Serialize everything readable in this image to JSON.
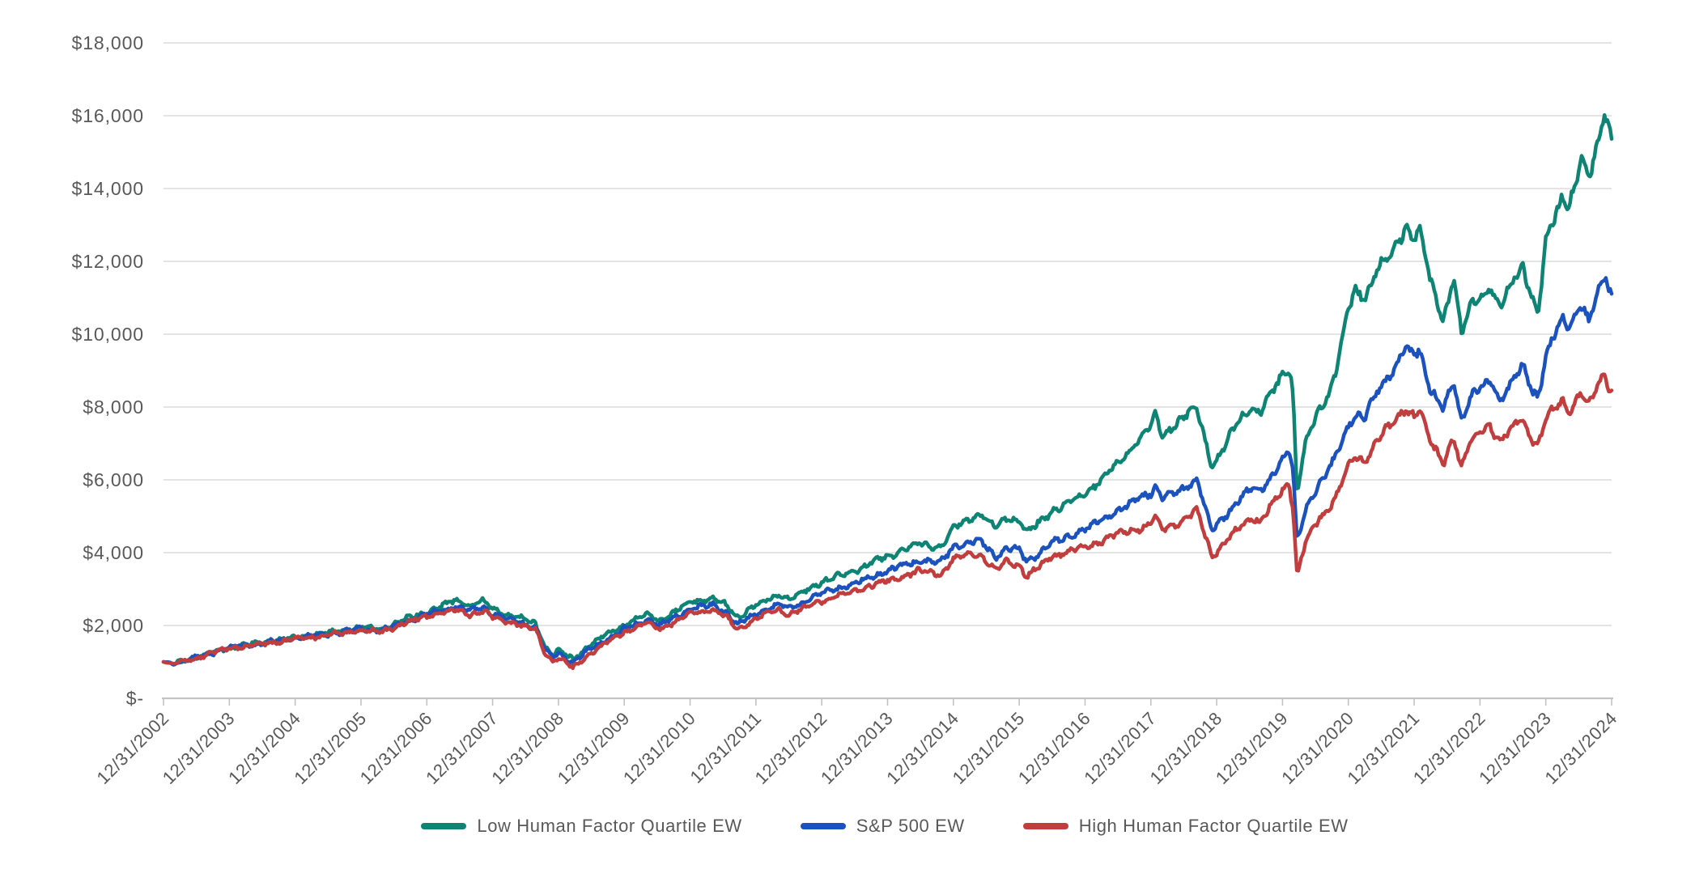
{
  "page": {
    "background": "#FFFFFF"
  },
  "chart_data": {
    "type": "line",
    "title": "",
    "xlabel": "",
    "ylabel": "",
    "x_unit": "years since 12/31/2002 (growth of $1,000)",
    "grid": "horizontal",
    "legend_position": "bottom",
    "axis_text_color": "#595959",
    "gridline_color": "#DBDBDB",
    "axis_line_color": "#C3C3C3",
    "y_axis": {
      "min": 0,
      "max": 18000,
      "tick_step": 2000,
      "ticks": [
        {
          "label": "$-",
          "value": 0
        },
        {
          "label": "$2,000",
          "value": 2000
        },
        {
          "label": "$4,000",
          "value": 4000
        },
        {
          "label": "$6,000",
          "value": 6000
        },
        {
          "label": "$8,000",
          "value": 8000
        },
        {
          "label": "$10,000",
          "value": 10000
        },
        {
          "label": "$12,000",
          "value": 12000
        },
        {
          "label": "$14,000",
          "value": 14000
        },
        {
          "label": "$16,000",
          "value": 16000
        },
        {
          "label": "$18,000",
          "value": 18000
        }
      ]
    },
    "x_axis": {
      "labels": [
        "12/31/2002",
        "12/31/2003",
        "12/31/2004",
        "12/31/2005",
        "12/31/2006",
        "12/31/2007",
        "12/31/2008",
        "12/31/2009",
        "12/31/2010",
        "12/31/2011",
        "12/31/2012",
        "12/31/2013",
        "12/31/2014",
        "12/31/2015",
        "12/31/2016",
        "12/31/2017",
        "12/31/2018",
        "12/31/2019",
        "12/31/2020",
        "12/31/2021",
        "12/31/2022",
        "12/31/2023",
        "12/31/2024"
      ]
    },
    "series": [
      {
        "name": "Low Human Factor Quartile EW",
        "color": "#0E8574",
        "points": [
          [
            0,
            1000
          ],
          [
            0.15,
            950
          ],
          [
            0.45,
            1100
          ],
          [
            1,
            1400
          ],
          [
            1.5,
            1530
          ],
          [
            2,
            1680
          ],
          [
            2.5,
            1800
          ],
          [
            3,
            1960
          ],
          [
            3.3,
            1905
          ],
          [
            3.7,
            2180
          ],
          [
            4,
            2360
          ],
          [
            4.45,
            2700
          ],
          [
            4.65,
            2550
          ],
          [
            4.85,
            2670
          ],
          [
            5,
            2450
          ],
          [
            5.35,
            2250
          ],
          [
            5.65,
            2050
          ],
          [
            5.8,
            1400
          ],
          [
            5.92,
            1180
          ],
          [
            6,
            1330
          ],
          [
            6.1,
            1200
          ],
          [
            6.22,
            1080
          ],
          [
            6.5,
            1500
          ],
          [
            7,
            2020
          ],
          [
            7.35,
            2300
          ],
          [
            7.55,
            2130
          ],
          [
            8,
            2640
          ],
          [
            8.35,
            2760
          ],
          [
            8.55,
            2550
          ],
          [
            8.72,
            2230
          ],
          [
            9,
            2560
          ],
          [
            9.35,
            2860
          ],
          [
            9.5,
            2720
          ],
          [
            10,
            3200
          ],
          [
            10.5,
            3520
          ],
          [
            11,
            3900
          ],
          [
            11.5,
            4250
          ],
          [
            11.8,
            4150
          ],
          [
            12,
            4660
          ],
          [
            12.4,
            5100
          ],
          [
            12.65,
            4670
          ],
          [
            12.8,
            4950
          ],
          [
            13,
            4890
          ],
          [
            13.12,
            4520
          ],
          [
            13.5,
            5150
          ],
          [
            14,
            5600
          ],
          [
            14.5,
            6450
          ],
          [
            15,
            7500
          ],
          [
            15.07,
            7780
          ],
          [
            15.18,
            7250
          ],
          [
            15.45,
            7650
          ],
          [
            15.7,
            8000
          ],
          [
            15.93,
            6360
          ],
          [
            16,
            6520
          ],
          [
            16.35,
            7700
          ],
          [
            16.55,
            8000
          ],
          [
            16.65,
            7800
          ],
          [
            17,
            8900
          ],
          [
            17.1,
            9130
          ],
          [
            17.16,
            8400
          ],
          [
            17.22,
            5600
          ],
          [
            17.35,
            7000
          ],
          [
            17.55,
            7900
          ],
          [
            17.65,
            8200
          ],
          [
            17.8,
            8900
          ],
          [
            18,
            10700
          ],
          [
            18.1,
            11200
          ],
          [
            18.25,
            11000
          ],
          [
            18.45,
            11800
          ],
          [
            18.65,
            12200
          ],
          [
            18.87,
            12950
          ],
          [
            19,
            12650
          ],
          [
            19.08,
            12900
          ],
          [
            19.25,
            11400
          ],
          [
            19.45,
            10400
          ],
          [
            19.6,
            11600
          ],
          [
            19.72,
            9950
          ],
          [
            19.85,
            10800
          ],
          [
            20,
            11000
          ],
          [
            20.15,
            11300
          ],
          [
            20.3,
            10700
          ],
          [
            20.55,
            11700
          ],
          [
            20.65,
            11900
          ],
          [
            20.8,
            10900
          ],
          [
            20.88,
            10500
          ],
          [
            21,
            12500
          ],
          [
            21.1,
            13100
          ],
          [
            21.25,
            13800
          ],
          [
            21.35,
            13450
          ],
          [
            21.55,
            14800
          ],
          [
            21.65,
            14300
          ],
          [
            21.78,
            15200
          ],
          [
            21.9,
            16150
          ],
          [
            21.95,
            15700
          ],
          [
            22,
            15200
          ]
        ]
      },
      {
        "name": "S&P 500 EW",
        "color": "#1B52BE",
        "points": [
          [
            0,
            1000
          ],
          [
            0.15,
            952
          ],
          [
            0.45,
            1090
          ],
          [
            1,
            1390
          ],
          [
            1.5,
            1510
          ],
          [
            2,
            1650
          ],
          [
            2.5,
            1765
          ],
          [
            3,
            1900
          ],
          [
            3.3,
            1855
          ],
          [
            3.7,
            2120
          ],
          [
            4,
            2300
          ],
          [
            4.45,
            2520
          ],
          [
            4.65,
            2400
          ],
          [
            4.85,
            2500
          ],
          [
            5,
            2330
          ],
          [
            5.35,
            2130
          ],
          [
            5.65,
            1950
          ],
          [
            5.8,
            1330
          ],
          [
            5.92,
            1120
          ],
          [
            6,
            1260
          ],
          [
            6.1,
            1120
          ],
          [
            6.22,
            990
          ],
          [
            6.5,
            1390
          ],
          [
            7,
            1900
          ],
          [
            7.35,
            2160
          ],
          [
            7.55,
            2000
          ],
          [
            8,
            2460
          ],
          [
            8.35,
            2570
          ],
          [
            8.55,
            2350
          ],
          [
            8.72,
            2030
          ],
          [
            9,
            2320
          ],
          [
            9.35,
            2580
          ],
          [
            9.5,
            2450
          ],
          [
            10,
            2890
          ],
          [
            10.5,
            3160
          ],
          [
            11,
            3500
          ],
          [
            11.5,
            3800
          ],
          [
            11.8,
            3700
          ],
          [
            12,
            4180
          ],
          [
            12.4,
            4330
          ],
          [
            12.65,
            3890
          ],
          [
            12.8,
            4120
          ],
          [
            13,
            4080
          ],
          [
            13.12,
            3750
          ],
          [
            13.5,
            4250
          ],
          [
            14,
            4650
          ],
          [
            14.5,
            5150
          ],
          [
            15,
            5650
          ],
          [
            15.07,
            5850
          ],
          [
            15.18,
            5480
          ],
          [
            15.45,
            5700
          ],
          [
            15.7,
            6030
          ],
          [
            15.93,
            4600
          ],
          [
            16,
            4720
          ],
          [
            16.35,
            5500
          ],
          [
            16.55,
            5800
          ],
          [
            16.65,
            5650
          ],
          [
            17,
            6550
          ],
          [
            17.1,
            6780
          ],
          [
            17.16,
            6200
          ],
          [
            17.22,
            4300
          ],
          [
            17.35,
            5200
          ],
          [
            17.55,
            5900
          ],
          [
            17.65,
            6100
          ],
          [
            17.8,
            6600
          ],
          [
            18,
            7500
          ],
          [
            18.1,
            7800
          ],
          [
            18.25,
            7700
          ],
          [
            18.45,
            8500
          ],
          [
            18.65,
            8950
          ],
          [
            18.87,
            9570
          ],
          [
            19,
            9400
          ],
          [
            19.08,
            9580
          ],
          [
            19.25,
            8500
          ],
          [
            19.45,
            7900
          ],
          [
            19.6,
            8700
          ],
          [
            19.72,
            7600
          ],
          [
            19.85,
            8300
          ],
          [
            20,
            8500
          ],
          [
            20.15,
            8700
          ],
          [
            20.3,
            8200
          ],
          [
            20.55,
            8900
          ],
          [
            20.65,
            9100
          ],
          [
            20.8,
            8400
          ],
          [
            20.88,
            8250
          ],
          [
            21,
            9400
          ],
          [
            21.1,
            9900
          ],
          [
            21.25,
            10400
          ],
          [
            21.35,
            10100
          ],
          [
            21.55,
            10900
          ],
          [
            21.65,
            10400
          ],
          [
            21.78,
            11100
          ],
          [
            21.9,
            11600
          ],
          [
            21.95,
            11200
          ],
          [
            22,
            11050
          ]
        ]
      },
      {
        "name": "High Human Factor Quartile EW",
        "color": "#C23D3D",
        "points": [
          [
            0,
            1000
          ],
          [
            0.15,
            940
          ],
          [
            0.45,
            1080
          ],
          [
            1,
            1380
          ],
          [
            1.5,
            1490
          ],
          [
            2,
            1630
          ],
          [
            2.5,
            1735
          ],
          [
            3,
            1870
          ],
          [
            3.3,
            1825
          ],
          [
            3.7,
            2080
          ],
          [
            4,
            2250
          ],
          [
            4.45,
            2420
          ],
          [
            4.65,
            2300
          ],
          [
            4.85,
            2400
          ],
          [
            5,
            2220
          ],
          [
            5.35,
            2050
          ],
          [
            5.65,
            1880
          ],
          [
            5.8,
            1250
          ],
          [
            5.92,
            1020
          ],
          [
            6,
            1100
          ],
          [
            6.1,
            1000
          ],
          [
            6.22,
            830
          ],
          [
            6.5,
            1250
          ],
          [
            7,
            1820
          ],
          [
            7.35,
            2060
          ],
          [
            7.55,
            1900
          ],
          [
            8,
            2330
          ],
          [
            8.35,
            2440
          ],
          [
            8.55,
            2230
          ],
          [
            8.72,
            1880
          ],
          [
            9,
            2190
          ],
          [
            9.35,
            2450
          ],
          [
            9.5,
            2300
          ],
          [
            10,
            2680
          ],
          [
            10.5,
            2950
          ],
          [
            11,
            3230
          ],
          [
            11.5,
            3500
          ],
          [
            11.8,
            3400
          ],
          [
            12,
            3830
          ],
          [
            12.4,
            3990
          ],
          [
            12.65,
            3500
          ],
          [
            12.8,
            3750
          ],
          [
            13,
            3650
          ],
          [
            13.12,
            3350
          ],
          [
            13.5,
            3900
          ],
          [
            14,
            4150
          ],
          [
            14.5,
            4500
          ],
          [
            15,
            4780
          ],
          [
            15.07,
            4950
          ],
          [
            15.18,
            4620
          ],
          [
            15.45,
            4850
          ],
          [
            15.7,
            5150
          ],
          [
            15.93,
            3900
          ],
          [
            16,
            4020
          ],
          [
            16.35,
            4700
          ],
          [
            16.55,
            5000
          ],
          [
            16.65,
            4850
          ],
          [
            17,
            5700
          ],
          [
            17.1,
            5890
          ],
          [
            17.16,
            5200
          ],
          [
            17.22,
            3380
          ],
          [
            17.35,
            4300
          ],
          [
            17.55,
            4900
          ],
          [
            17.65,
            5100
          ],
          [
            17.8,
            5500
          ],
          [
            18,
            6350
          ],
          [
            18.1,
            6600
          ],
          [
            18.25,
            6500
          ],
          [
            18.45,
            7150
          ],
          [
            18.65,
            7500
          ],
          [
            18.87,
            7950
          ],
          [
            19,
            7800
          ],
          [
            19.08,
            7950
          ],
          [
            19.25,
            7000
          ],
          [
            19.45,
            6450
          ],
          [
            19.6,
            7200
          ],
          [
            19.72,
            6300
          ],
          [
            19.85,
            7000
          ],
          [
            20,
            7350
          ],
          [
            20.15,
            7500
          ],
          [
            20.3,
            7000
          ],
          [
            20.55,
            7550
          ],
          [
            20.65,
            7700
          ],
          [
            20.8,
            7050
          ],
          [
            20.88,
            6900
          ],
          [
            21,
            7600
          ],
          [
            21.1,
            7900
          ],
          [
            21.25,
            8200
          ],
          [
            21.35,
            7900
          ],
          [
            21.55,
            8400
          ],
          [
            21.65,
            8000
          ],
          [
            21.78,
            8600
          ],
          [
            21.9,
            8950
          ],
          [
            21.95,
            8550
          ],
          [
            22,
            8400
          ]
        ]
      }
    ]
  }
}
